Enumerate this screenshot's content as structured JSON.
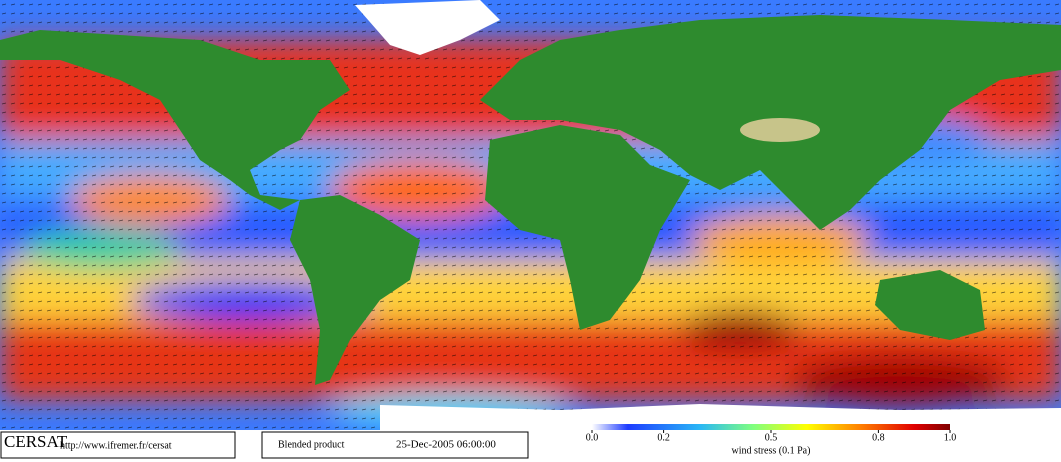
{
  "footer": {
    "logo": "CERSAT",
    "url": "http://www.ifremer.fr/cersat",
    "product": "Blended product",
    "date": "25-Dec-2005 06:00:00"
  },
  "colorbar": {
    "label": "wind stress (0.1 Pa)",
    "lim": [
      0,
      1
    ],
    "ticks": [
      {
        "value": 0,
        "label": "0.0"
      },
      0.2,
      0.5,
      0.8,
      {
        "value": 1,
        "label": "1.0"
      }
    ]
  }
}
